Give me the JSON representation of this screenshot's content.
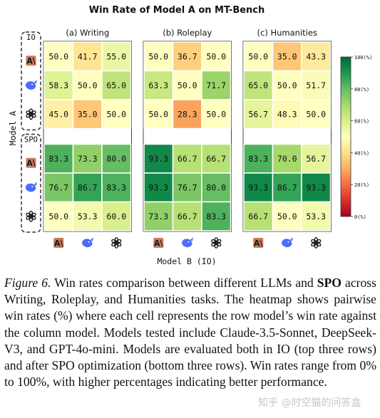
{
  "chart_data": {
    "type": "heatmap",
    "title": "Win Rate of Model A on MT-Bench",
    "ylabel": "Model A",
    "xlabel": "Model B (IO)",
    "row_groups": [
      "IO",
      "SPO"
    ],
    "model_icons": [
      "claude-icon",
      "deepseek-icon",
      "openai-icon"
    ],
    "panels": [
      {
        "title": "(a) Writing",
        "values": [
          [
            50.0,
            41.7,
            55.0
          ],
          [
            58.3,
            50.0,
            65.0
          ],
          [
            45.0,
            35.0,
            50.0
          ],
          [
            83.3,
            73.3,
            80.0
          ],
          [
            76.7,
            86.7,
            83.3
          ],
          [
            50.0,
            53.3,
            60.0
          ]
        ]
      },
      {
        "title": "(b) Roleplay",
        "values": [
          [
            50.0,
            36.7,
            50.0
          ],
          [
            63.3,
            50.0,
            71.7
          ],
          [
            50.0,
            28.3,
            50.0
          ],
          [
            93.3,
            66.7,
            66.7
          ],
          [
            93.3,
            76.7,
            80.0
          ],
          [
            73.3,
            66.7,
            83.3
          ]
        ]
      },
      {
        "title": "(c) Humanities",
        "values": [
          [
            50.0,
            35.0,
            43.3
          ],
          [
            65.0,
            50.0,
            51.7
          ],
          [
            56.7,
            48.3,
            50.0
          ],
          [
            83.3,
            70.0,
            56.7
          ],
          [
            93.3,
            86.7,
            93.3
          ],
          [
            66.7,
            50.0,
            53.3
          ]
        ]
      }
    ],
    "colorbar": {
      "range": [
        0,
        100
      ],
      "ticks": [
        "0(%)",
        "20(%)",
        "40(%)",
        "60(%)",
        "80(%)",
        "100(%)"
      ],
      "colors": [
        "#a50026",
        "#d73027",
        "#f46d43",
        "#fdae61",
        "#fee08b",
        "#ffffbf",
        "#d9ef8b",
        "#a6d96a",
        "#66bd63",
        "#1a9850",
        "#006837"
      ]
    }
  },
  "caption": {
    "fig_label": "Figure 6.",
    "text_before": " Win rates comparison between different LLMs and ",
    "spo": "SPO",
    "text_after": " across Writing, Roleplay, and Humanities tasks. The heatmap shows pairwise win rates (%) where each cell represents the row model’s win rate against the column model. Models tested include Claude-3.5-Sonnet, DeepSeek-V3, and GPT-4o-mini. Models are evaluated both in IO (top three rows) and after SPO optimization (bottom three rows). Win rates range from 0% to 100%, with higher percentages indicating better performance."
  },
  "watermark": "知乎 @时空猫的问答盒"
}
